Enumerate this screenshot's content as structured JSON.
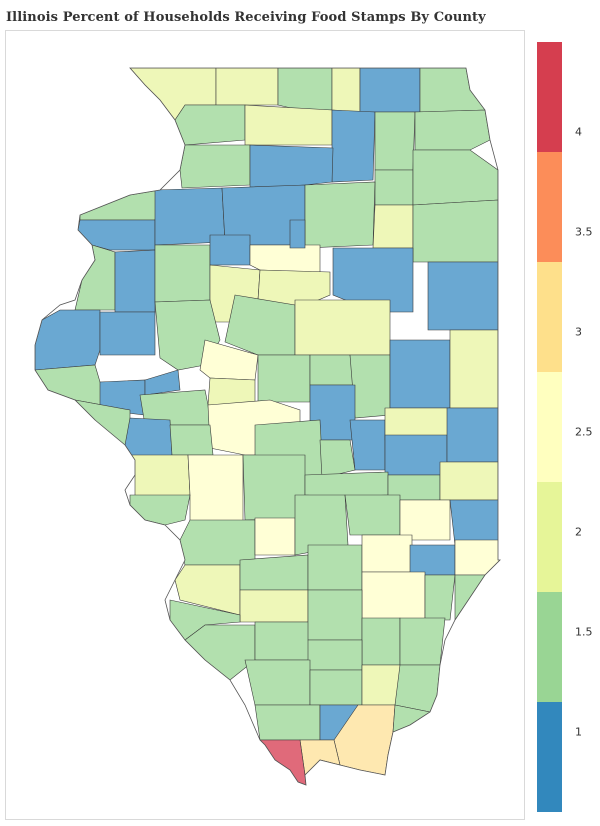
{
  "title": "Illinois Percent of Households Receiving Food Stamps By County",
  "legend": {
    "ticks": [
      "1",
      "1.5",
      "2",
      "2.5",
      "3",
      "3.5",
      "4"
    ],
    "bins": [
      {
        "color": "#3288bd"
      },
      {
        "color": "#99d594"
      },
      {
        "color": "#e6f598"
      },
      {
        "color": "#ffffbf"
      },
      {
        "color": "#fee08b"
      },
      {
        "color": "#fc8d59"
      },
      {
        "color": "#d53e4f"
      }
    ]
  },
  "colors": {
    "blue": "#6aa8d2",
    "green": "#b2e0ae",
    "lightgreen": "#eef7b8",
    "yellow": "#ffffd6",
    "lightorange": "#fee8b0",
    "red": "#e06a7a",
    "border": "#444444"
  }
}
